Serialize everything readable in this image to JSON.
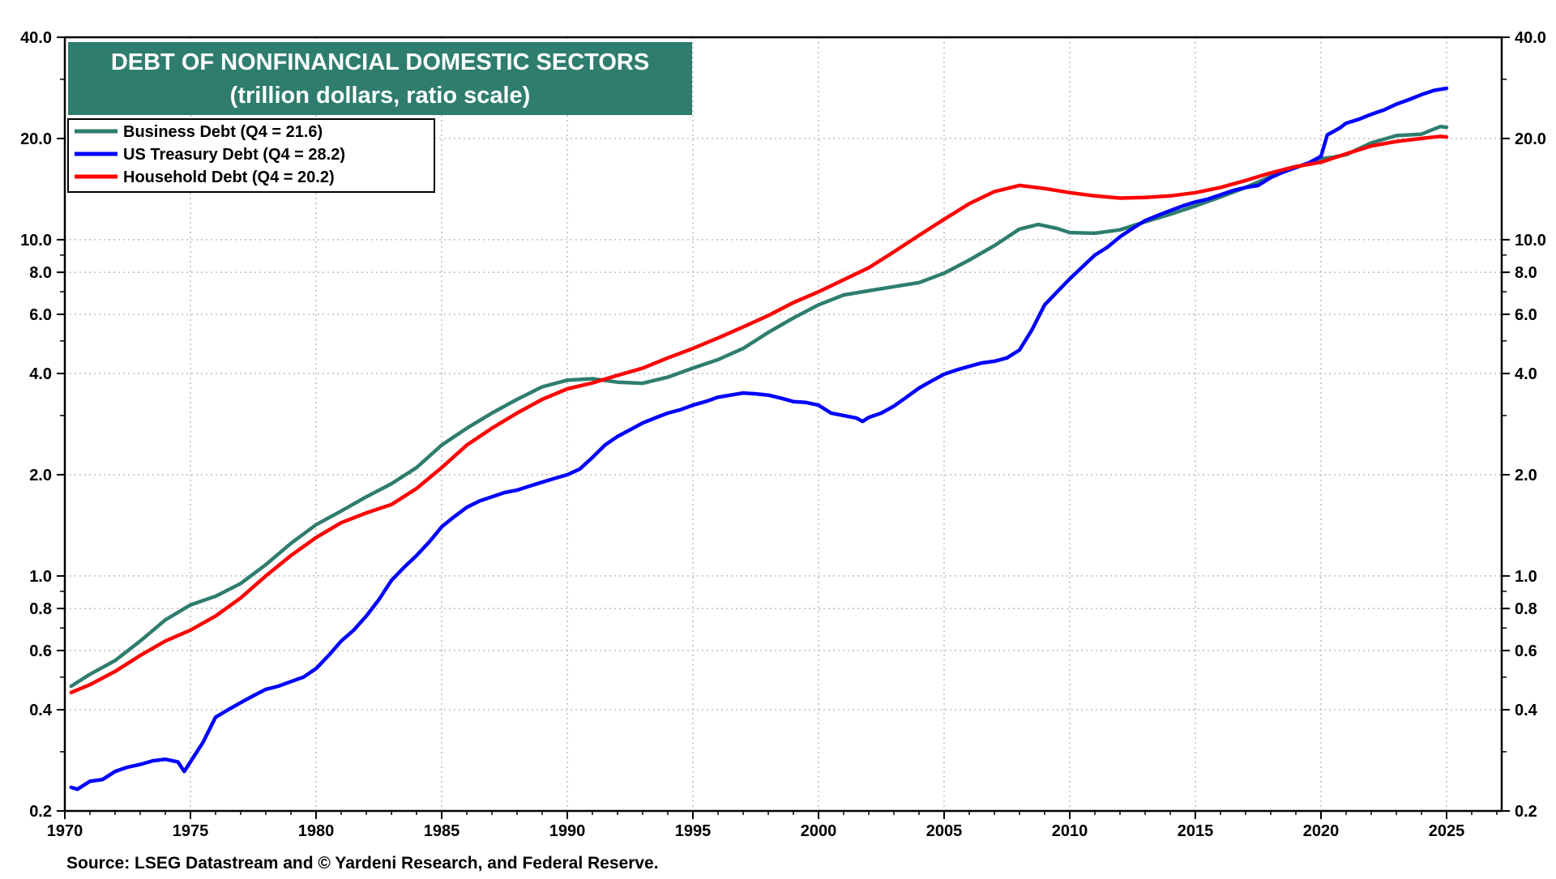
{
  "chart_data": {
    "type": "line",
    "title": "DEBT OF NONFINANCIAL DOMESTIC SECTORS",
    "subtitle": "(trillion dollars, ratio scale)",
    "source": "Source: LSEG Datastream and © Yardeni Research, and Federal Reserve.",
    "y_scale": "log",
    "ylim": [
      0.2,
      40
    ],
    "xlim": [
      1970,
      2027
    ],
    "grid": true,
    "legend_position": "top-left",
    "y_ticks": [
      {
        "value": 40,
        "label": "40.0"
      },
      {
        "value": 20,
        "label": "20.0"
      },
      {
        "value": 10,
        "label": "10.0"
      },
      {
        "value": 8,
        "label": "8.0"
      },
      {
        "value": 6,
        "label": "6.0"
      },
      {
        "value": 4,
        "label": "4.0"
      },
      {
        "value": 2,
        "label": "2.0"
      },
      {
        "value": 1,
        "label": "1.0"
      },
      {
        "value": 0.8,
        "label": "0.8"
      },
      {
        "value": 0.6,
        "label": "0.6"
      },
      {
        "value": 0.4,
        "label": "0.4"
      },
      {
        "value": 0.2,
        "label": "0.2"
      }
    ],
    "x_ticks": [
      {
        "value": 1970,
        "label": "1970"
      },
      {
        "value": 1975,
        "label": "1975"
      },
      {
        "value": 1980,
        "label": "1980"
      },
      {
        "value": 1985,
        "label": "1985"
      },
      {
        "value": 1990,
        "label": "1990"
      },
      {
        "value": 1995,
        "label": "1995"
      },
      {
        "value": 2000,
        "label": "2000"
      },
      {
        "value": 2005,
        "label": "2005"
      },
      {
        "value": 2010,
        "label": "2010"
      },
      {
        "value": 2015,
        "label": "2015"
      },
      {
        "value": 2020,
        "label": "2020"
      },
      {
        "value": 2025,
        "label": "2025"
      }
    ],
    "series": [
      {
        "name": "Business Debt (Q4 = 21.6)",
        "color": "#2e7d6e",
        "points": [
          [
            1970.25,
            0.47
          ],
          [
            1971,
            0.51
          ],
          [
            1972,
            0.56
          ],
          [
            1973,
            0.64
          ],
          [
            1974,
            0.74
          ],
          [
            1975,
            0.82
          ],
          [
            1976,
            0.87
          ],
          [
            1977,
            0.95
          ],
          [
            1978,
            1.08
          ],
          [
            1979,
            1.25
          ],
          [
            1980,
            1.42
          ],
          [
            1981,
            1.56
          ],
          [
            1982,
            1.72
          ],
          [
            1983,
            1.88
          ],
          [
            1984,
            2.1
          ],
          [
            1985,
            2.45
          ],
          [
            1986,
            2.75
          ],
          [
            1987,
            3.05
          ],
          [
            1988,
            3.35
          ],
          [
            1989,
            3.65
          ],
          [
            1990,
            3.82
          ],
          [
            1991,
            3.86
          ],
          [
            1992,
            3.77
          ],
          [
            1993,
            3.74
          ],
          [
            1994,
            3.9
          ],
          [
            1995,
            4.15
          ],
          [
            1996,
            4.4
          ],
          [
            1997,
            4.75
          ],
          [
            1998,
            5.3
          ],
          [
            1999,
            5.85
          ],
          [
            2000,
            6.4
          ],
          [
            2001,
            6.85
          ],
          [
            2002,
            7.05
          ],
          [
            2003,
            7.25
          ],
          [
            2004,
            7.45
          ],
          [
            2005,
            7.95
          ],
          [
            2006,
            8.7
          ],
          [
            2007,
            9.6
          ],
          [
            2008,
            10.75
          ],
          [
            2008.75,
            11.1
          ],
          [
            2009.5,
            10.8
          ],
          [
            2010,
            10.5
          ],
          [
            2011,
            10.45
          ],
          [
            2012,
            10.7
          ],
          [
            2013,
            11.3
          ],
          [
            2014,
            11.9
          ],
          [
            2015,
            12.6
          ],
          [
            2016,
            13.4
          ],
          [
            2017,
            14.3
          ],
          [
            2018,
            15.4
          ],
          [
            2019,
            16.4
          ],
          [
            2020,
            17.4
          ],
          [
            2020.5,
            17.6
          ],
          [
            2021,
            17.9
          ],
          [
            2022,
            19.4
          ],
          [
            2023,
            20.4
          ],
          [
            2024,
            20.6
          ],
          [
            2024.75,
            21.7
          ],
          [
            2025,
            21.6
          ]
        ]
      },
      {
        "name": "US Treasury  Debt (Q4 = 28.2)",
        "color": "#0000ff",
        "points": [
          [
            1970.25,
            0.235
          ],
          [
            1970.5,
            0.232
          ],
          [
            1971,
            0.245
          ],
          [
            1971.5,
            0.248
          ],
          [
            1972,
            0.262
          ],
          [
            1972.5,
            0.27
          ],
          [
            1973,
            0.275
          ],
          [
            1973.5,
            0.282
          ],
          [
            1974,
            0.285
          ],
          [
            1974.5,
            0.28
          ],
          [
            1974.75,
            0.262
          ],
          [
            1975,
            0.28
          ],
          [
            1975.5,
            0.32
          ],
          [
            1976,
            0.38
          ],
          [
            1976.5,
            0.4
          ],
          [
            1977,
            0.42
          ],
          [
            1977.5,
            0.44
          ],
          [
            1978,
            0.46
          ],
          [
            1978.5,
            0.47
          ],
          [
            1979,
            0.485
          ],
          [
            1979.5,
            0.5
          ],
          [
            1980,
            0.53
          ],
          [
            1980.5,
            0.58
          ],
          [
            1981,
            0.64
          ],
          [
            1981.5,
            0.69
          ],
          [
            1982,
            0.76
          ],
          [
            1982.5,
            0.85
          ],
          [
            1983,
            0.97
          ],
          [
            1983.5,
            1.06
          ],
          [
            1984,
            1.15
          ],
          [
            1984.5,
            1.26
          ],
          [
            1985,
            1.4
          ],
          [
            1985.5,
            1.5
          ],
          [
            1986,
            1.6
          ],
          [
            1986.5,
            1.67
          ],
          [
            1987,
            1.72
          ],
          [
            1987.5,
            1.77
          ],
          [
            1988,
            1.8
          ],
          [
            1988.5,
            1.85
          ],
          [
            1989,
            1.9
          ],
          [
            1989.5,
            1.95
          ],
          [
            1990,
            2.0
          ],
          [
            1990.5,
            2.08
          ],
          [
            1991,
            2.25
          ],
          [
            1991.5,
            2.45
          ],
          [
            1992,
            2.6
          ],
          [
            1992.5,
            2.72
          ],
          [
            1993,
            2.85
          ],
          [
            1993.5,
            2.95
          ],
          [
            1994,
            3.05
          ],
          [
            1994.5,
            3.12
          ],
          [
            1995,
            3.22
          ],
          [
            1995.5,
            3.3
          ],
          [
            1996,
            3.4
          ],
          [
            1996.5,
            3.45
          ],
          [
            1997,
            3.5
          ],
          [
            1997.5,
            3.48
          ],
          [
            1998,
            3.45
          ],
          [
            1998.5,
            3.38
          ],
          [
            1999,
            3.3
          ],
          [
            1999.5,
            3.28
          ],
          [
            2000,
            3.22
          ],
          [
            2000.5,
            3.05
          ],
          [
            2001,
            3.0
          ],
          [
            2001.5,
            2.95
          ],
          [
            2001.75,
            2.88
          ],
          [
            2002,
            2.96
          ],
          [
            2002.5,
            3.05
          ],
          [
            2003,
            3.2
          ],
          [
            2003.5,
            3.4
          ],
          [
            2004,
            3.62
          ],
          [
            2004.5,
            3.8
          ],
          [
            2005,
            3.98
          ],
          [
            2005.5,
            4.1
          ],
          [
            2006,
            4.2
          ],
          [
            2006.5,
            4.3
          ],
          [
            2007,
            4.35
          ],
          [
            2007.5,
            4.45
          ],
          [
            2008,
            4.7
          ],
          [
            2008.5,
            5.4
          ],
          [
            2009,
            6.4
          ],
          [
            2009.5,
            7.0
          ],
          [
            2010,
            7.65
          ],
          [
            2010.5,
            8.3
          ],
          [
            2011,
            9.0
          ],
          [
            2011.5,
            9.5
          ],
          [
            2012,
            10.2
          ],
          [
            2012.5,
            10.8
          ],
          [
            2013,
            11.4
          ],
          [
            2013.5,
            11.8
          ],
          [
            2014,
            12.2
          ],
          [
            2014.5,
            12.6
          ],
          [
            2015,
            12.95
          ],
          [
            2015.5,
            13.2
          ],
          [
            2016,
            13.6
          ],
          [
            2016.5,
            14.0
          ],
          [
            2017,
            14.3
          ],
          [
            2017.5,
            14.5
          ],
          [
            2018,
            15.3
          ],
          [
            2018.5,
            15.9
          ],
          [
            2019,
            16.4
          ],
          [
            2019.5,
            16.9
          ],
          [
            2020,
            17.7
          ],
          [
            2020.25,
            20.5
          ],
          [
            2020.75,
            21.5
          ],
          [
            2021,
            22.2
          ],
          [
            2021.5,
            22.8
          ],
          [
            2022,
            23.6
          ],
          [
            2022.5,
            24.3
          ],
          [
            2023,
            25.3
          ],
          [
            2023.5,
            26.1
          ],
          [
            2024,
            27.0
          ],
          [
            2024.5,
            27.8
          ],
          [
            2025,
            28.2
          ]
        ]
      },
      {
        "name": "Household  Debt (Q4 = 20.2)",
        "color": "#ff0000",
        "points": [
          [
            1970.25,
            0.45
          ],
          [
            1971,
            0.475
          ],
          [
            1972,
            0.52
          ],
          [
            1973,
            0.58
          ],
          [
            1974,
            0.64
          ],
          [
            1975,
            0.69
          ],
          [
            1976,
            0.76
          ],
          [
            1977,
            0.86
          ],
          [
            1978,
            1.0
          ],
          [
            1979,
            1.15
          ],
          [
            1980,
            1.3
          ],
          [
            1981,
            1.44
          ],
          [
            1982,
            1.54
          ],
          [
            1983,
            1.63
          ],
          [
            1984,
            1.82
          ],
          [
            1985,
            2.1
          ],
          [
            1986,
            2.45
          ],
          [
            1987,
            2.75
          ],
          [
            1988,
            3.05
          ],
          [
            1989,
            3.35
          ],
          [
            1990,
            3.6
          ],
          [
            1991,
            3.75
          ],
          [
            1992,
            3.95
          ],
          [
            1993,
            4.15
          ],
          [
            1994,
            4.45
          ],
          [
            1995,
            4.75
          ],
          [
            1996,
            5.1
          ],
          [
            1997,
            5.5
          ],
          [
            1998,
            5.95
          ],
          [
            1999,
            6.5
          ],
          [
            2000,
            7.0
          ],
          [
            2001,
            7.6
          ],
          [
            2002,
            8.25
          ],
          [
            2003,
            9.2
          ],
          [
            2004,
            10.3
          ],
          [
            2005,
            11.5
          ],
          [
            2006,
            12.8
          ],
          [
            2007,
            13.9
          ],
          [
            2008,
            14.5
          ],
          [
            2009,
            14.2
          ],
          [
            2010,
            13.8
          ],
          [
            2011,
            13.5
          ],
          [
            2012,
            13.3
          ],
          [
            2013,
            13.35
          ],
          [
            2014,
            13.5
          ],
          [
            2015,
            13.8
          ],
          [
            2016,
            14.3
          ],
          [
            2017,
            15.0
          ],
          [
            2018,
            15.8
          ],
          [
            2019,
            16.5
          ],
          [
            2020,
            17.0
          ],
          [
            2021,
            18.0
          ],
          [
            2022,
            19.0
          ],
          [
            2023,
            19.6
          ],
          [
            2024,
            20.0
          ],
          [
            2024.75,
            20.3
          ],
          [
            2025,
            20.2
          ]
        ]
      }
    ]
  }
}
